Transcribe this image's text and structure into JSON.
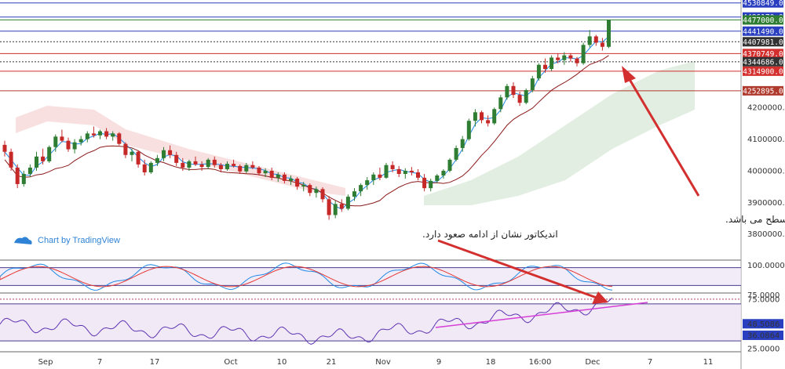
{
  "chart_data": {
    "type": "candlestick",
    "brand": "Chart by TradingView",
    "price_axis": {
      "ticks": [
        "4200000.0",
        "4100000.0",
        "4000000.0",
        "3900000.0",
        "3800000.0"
      ],
      "tick_values": [
        4200000,
        4100000,
        4000000,
        3900000,
        3800000
      ],
      "range": [
        3720000,
        4540000
      ]
    },
    "level_lines": [
      {
        "label": "4530849.0",
        "value": 4530849,
        "color": "#2a3fbf"
      },
      {
        "label": "4486170.0",
        "value": 4486170,
        "color": "#2a3fbf"
      },
      {
        "label": "4477000.0",
        "value": 4477000,
        "color": "#2e7d32"
      },
      {
        "label": "4441490.0",
        "value": 4441490,
        "color": "#2a3fbf"
      },
      {
        "label": "4407981.0",
        "value": 4407981,
        "color": "#333333"
      },
      {
        "label": "4370749.0",
        "value": 4370749,
        "color": "#d32f2f"
      },
      {
        "label": "4344686.0",
        "value": 4344686,
        "color": "#333333"
      },
      {
        "label": "4314900.0",
        "value": 4314900,
        "color": "#d32f2f"
      },
      {
        "label": "4252895.0",
        "value": 4252895,
        "color": "#b03a2e"
      }
    ],
    "x_axis": [
      "Sep",
      "7",
      "17",
      "Oct",
      "10",
      "21",
      "Nov",
      "9",
      "18",
      "16:00",
      "Dec",
      "7",
      "11"
    ],
    "stoch_panel": {
      "ticks": [
        "100.0000",
        "75.0000"
      ],
      "range": [
        0,
        100
      ],
      "lines": [
        80,
        20
      ]
    },
    "rsi_panel": {
      "ticks": [
        "75.0000",
        "48.5086",
        "36.0864",
        "25.0000"
      ],
      "range": [
        20,
        80
      ],
      "band": [
        30,
        70
      ]
    },
    "price_series": [
      {
        "t": 0,
        "o": 4082000,
        "h": 4095000,
        "l": 4045000,
        "c": 4060000
      },
      {
        "t": 0.5,
        "o": 4060000,
        "h": 4070000,
        "l": 4000000,
        "c": 4010000
      },
      {
        "t": 1.0,
        "o": 4010000,
        "h": 4020000,
        "l": 3945000,
        "c": 3958000
      },
      {
        "t": 1.5,
        "o": 3958000,
        "h": 4000000,
        "l": 3950000,
        "c": 3990000
      },
      {
        "t": 2.0,
        "o": 3990000,
        "h": 4020000,
        "l": 3980000,
        "c": 4010000
      },
      {
        "t": 2.5,
        "o": 4010000,
        "h": 4060000,
        "l": 4000000,
        "c": 4045000
      },
      {
        "t": 3.0,
        "o": 4045000,
        "h": 4070000,
        "l": 4020000,
        "c": 4030000
      },
      {
        "t": 3.5,
        "o": 4030000,
        "h": 4080000,
        "l": 4025000,
        "c": 4075000
      },
      {
        "t": 4.0,
        "o": 4075000,
        "h": 4115000,
        "l": 4060000,
        "c": 4108000
      },
      {
        "t": 4.5,
        "o": 4108000,
        "h": 4130000,
        "l": 4090000,
        "c": 4095000
      },
      {
        "t": 5.0,
        "o": 4095000,
        "h": 4105000,
        "l": 4060000,
        "c": 4068000
      },
      {
        "t": 5.5,
        "o": 4068000,
        "h": 4100000,
        "l": 4055000,
        "c": 4090000
      },
      {
        "t": 6.0,
        "o": 4090000,
        "h": 4110000,
        "l": 4080000,
        "c": 4100000
      },
      {
        "t": 6.5,
        "o": 4100000,
        "h": 4125000,
        "l": 4090000,
        "c": 4118000
      },
      {
        "t": 7.0,
        "o": 4118000,
        "h": 4140000,
        "l": 4105000,
        "c": 4112000
      },
      {
        "t": 7.5,
        "o": 4112000,
        "h": 4130000,
        "l": 4100000,
        "c": 4125000
      },
      {
        "t": 8.0,
        "o": 4125000,
        "h": 4135000,
        "l": 4100000,
        "c": 4108000
      },
      {
        "t": 8.5,
        "o": 4108000,
        "h": 4125000,
        "l": 4095000,
        "c": 4118000
      },
      {
        "t": 9.0,
        "o": 4118000,
        "h": 4122000,
        "l": 4080000,
        "c": 4085000
      },
      {
        "t": 9.5,
        "o": 4085000,
        "h": 4090000,
        "l": 4040000,
        "c": 4050000
      },
      {
        "t": 10.0,
        "o": 4050000,
        "h": 4070000,
        "l": 4030000,
        "c": 4060000
      },
      {
        "t": 10.5,
        "o": 4060000,
        "h": 4065000,
        "l": 4010000,
        "c": 4020000
      },
      {
        "t": 11.0,
        "o": 4020000,
        "h": 4035000,
        "l": 3985000,
        "c": 3995000
      },
      {
        "t": 11.5,
        "o": 3995000,
        "h": 4030000,
        "l": 3990000,
        "c": 4025000
      },
      {
        "t": 12.0,
        "o": 4025000,
        "h": 4050000,
        "l": 4015000,
        "c": 4040000
      },
      {
        "t": 12.5,
        "o": 4040000,
        "h": 4075000,
        "l": 4030000,
        "c": 4065000
      },
      {
        "t": 13.0,
        "o": 4065000,
        "h": 4080000,
        "l": 4040000,
        "c": 4050000
      },
      {
        "t": 13.5,
        "o": 4050000,
        "h": 4060000,
        "l": 4015000,
        "c": 4025000
      },
      {
        "t": 14.0,
        "o": 4025000,
        "h": 4040000,
        "l": 4000000,
        "c": 4010000
      },
      {
        "t": 14.5,
        "o": 4010000,
        "h": 4035000,
        "l": 4000000,
        "c": 4030000
      },
      {
        "t": 15.0,
        "o": 4030000,
        "h": 4045000,
        "l": 4015000,
        "c": 4020000
      },
      {
        "t": 15.5,
        "o": 4020000,
        "h": 4030000,
        "l": 4000000,
        "c": 4012000
      },
      {
        "t": 16.0,
        "o": 4012000,
        "h": 4040000,
        "l": 4005000,
        "c": 4035000
      },
      {
        "t": 16.5,
        "o": 4035000,
        "h": 4045000,
        "l": 4010000,
        "c": 4018000
      },
      {
        "t": 17.0,
        "o": 4018000,
        "h": 4025000,
        "l": 3995000,
        "c": 4005000
      },
      {
        "t": 17.5,
        "o": 4005000,
        "h": 4030000,
        "l": 4000000,
        "c": 4022000
      },
      {
        "t": 18.0,
        "o": 4022000,
        "h": 4035000,
        "l": 4010000,
        "c": 4015000
      },
      {
        "t": 18.5,
        "o": 4015000,
        "h": 4020000,
        "l": 3990000,
        "c": 3998000
      },
      {
        "t": 19.0,
        "o": 3998000,
        "h": 4025000,
        "l": 3992000,
        "c": 4018000
      },
      {
        "t": 19.5,
        "o": 4018000,
        "h": 4030000,
        "l": 4005000,
        "c": 4010000
      },
      {
        "t": 20.0,
        "o": 4010000,
        "h": 4015000,
        "l": 3985000,
        "c": 3992000
      },
      {
        "t": 20.5,
        "o": 3992000,
        "h": 4008000,
        "l": 3980000,
        "c": 4000000
      },
      {
        "t": 21.0,
        "o": 4000000,
        "h": 4010000,
        "l": 3970000,
        "c": 3978000
      },
      {
        "t": 21.5,
        "o": 3978000,
        "h": 3995000,
        "l": 3965000,
        "c": 3988000
      },
      {
        "t": 22.0,
        "o": 3988000,
        "h": 3995000,
        "l": 3960000,
        "c": 3968000
      },
      {
        "t": 22.5,
        "o": 3968000,
        "h": 3985000,
        "l": 3955000,
        "c": 3975000
      },
      {
        "t": 23.0,
        "o": 3975000,
        "h": 3980000,
        "l": 3940000,
        "c": 3950000
      },
      {
        "t": 23.5,
        "o": 3950000,
        "h": 3965000,
        "l": 3935000,
        "c": 3955000
      },
      {
        "t": 24.0,
        "o": 3955000,
        "h": 3960000,
        "l": 3920000,
        "c": 3930000
      },
      {
        "t": 24.5,
        "o": 3930000,
        "h": 3950000,
        "l": 3915000,
        "c": 3942000
      },
      {
        "t": 25.0,
        "o": 3942000,
        "h": 3948000,
        "l": 3900000,
        "c": 3910000
      },
      {
        "t": 25.5,
        "o": 3910000,
        "h": 3920000,
        "l": 3845000,
        "c": 3860000
      },
      {
        "t": 26.0,
        "o": 3860000,
        "h": 3905000,
        "l": 3850000,
        "c": 3895000
      },
      {
        "t": 26.5,
        "o": 3895000,
        "h": 3910000,
        "l": 3870000,
        "c": 3880000
      },
      {
        "t": 27.0,
        "o": 3880000,
        "h": 3925000,
        "l": 3875000,
        "c": 3918000
      },
      {
        "t": 27.5,
        "o": 3918000,
        "h": 3945000,
        "l": 3905000,
        "c": 3935000
      },
      {
        "t": 28.0,
        "o": 3935000,
        "h": 3960000,
        "l": 3920000,
        "c": 3955000
      },
      {
        "t": 28.5,
        "o": 3955000,
        "h": 3980000,
        "l": 3940000,
        "c": 3970000
      },
      {
        "t": 29.0,
        "o": 3970000,
        "h": 3995000,
        "l": 3955000,
        "c": 3988000
      },
      {
        "t": 29.5,
        "o": 3988000,
        "h": 4010000,
        "l": 3970000,
        "c": 3978000
      },
      {
        "t": 30.0,
        "o": 3978000,
        "h": 4025000,
        "l": 3975000,
        "c": 4018000
      },
      {
        "t": 30.5,
        "o": 4018000,
        "h": 4030000,
        "l": 3995000,
        "c": 4005000
      },
      {
        "t": 31.0,
        "o": 4005000,
        "h": 4015000,
        "l": 3980000,
        "c": 3990000
      },
      {
        "t": 31.5,
        "o": 3990000,
        "h": 4008000,
        "l": 3975000,
        "c": 4000000
      },
      {
        "t": 32.0,
        "o": 4000000,
        "h": 4012000,
        "l": 3985000,
        "c": 3995000
      },
      {
        "t": 32.5,
        "o": 3995000,
        "h": 4005000,
        "l": 3970000,
        "c": 3978000
      },
      {
        "t": 33.0,
        "o": 3978000,
        "h": 3990000,
        "l": 3935000,
        "c": 3945000
      },
      {
        "t": 33.5,
        "o": 3945000,
        "h": 3975000,
        "l": 3935000,
        "c": 3968000
      },
      {
        "t": 34.0,
        "o": 3968000,
        "h": 3990000,
        "l": 3960000,
        "c": 3985000
      },
      {
        "t": 34.5,
        "o": 3985000,
        "h": 4005000,
        "l": 3975000,
        "c": 4000000
      },
      {
        "t": 35.0,
        "o": 4000000,
        "h": 4040000,
        "l": 3995000,
        "c": 4035000
      },
      {
        "t": 35.5,
        "o": 4035000,
        "h": 4080000,
        "l": 4030000,
        "c": 4072000
      },
      {
        "t": 36.0,
        "o": 4072000,
        "h": 4110000,
        "l": 4060000,
        "c": 4100000
      },
      {
        "t": 36.5,
        "o": 4100000,
        "h": 4165000,
        "l": 4095000,
        "c": 4158000
      },
      {
        "t": 37.0,
        "o": 4158000,
        "h": 4195000,
        "l": 4140000,
        "c": 4185000
      },
      {
        "t": 37.5,
        "o": 4185000,
        "h": 4190000,
        "l": 4150000,
        "c": 4160000
      },
      {
        "t": 38.0,
        "o": 4160000,
        "h": 4175000,
        "l": 4140000,
        "c": 4150000
      },
      {
        "t": 38.5,
        "o": 4150000,
        "h": 4200000,
        "l": 4145000,
        "c": 4195000
      },
      {
        "t": 39.0,
        "o": 4195000,
        "h": 4240000,
        "l": 4185000,
        "c": 4232000
      },
      {
        "t": 39.5,
        "o": 4232000,
        "h": 4275000,
        "l": 4225000,
        "c": 4268000
      },
      {
        "t": 40.0,
        "o": 4268000,
        "h": 4280000,
        "l": 4230000,
        "c": 4240000
      },
      {
        "t": 40.5,
        "o": 4240000,
        "h": 4250000,
        "l": 4205000,
        "c": 4215000
      },
      {
        "t": 41.0,
        "o": 4215000,
        "h": 4260000,
        "l": 4210000,
        "c": 4255000
      },
      {
        "t": 41.5,
        "o": 4255000,
        "h": 4300000,
        "l": 4248000,
        "c": 4292000
      },
      {
        "t": 42.0,
        "o": 4292000,
        "h": 4340000,
        "l": 4285000,
        "c": 4335000
      },
      {
        "t": 42.5,
        "o": 4335000,
        "h": 4355000,
        "l": 4310000,
        "c": 4322000
      },
      {
        "t": 43.0,
        "o": 4322000,
        "h": 4365000,
        "l": 4315000,
        "c": 4358000
      },
      {
        "t": 43.5,
        "o": 4358000,
        "h": 4370000,
        "l": 4340000,
        "c": 4350000
      },
      {
        "t": 44.0,
        "o": 4350000,
        "h": 4375000,
        "l": 4335000,
        "c": 4365000
      },
      {
        "t": 44.5,
        "o": 4365000,
        "h": 4372000,
        "l": 4345000,
        "c": 4355000
      },
      {
        "t": 45.0,
        "o": 4355000,
        "h": 4360000,
        "l": 4330000,
        "c": 4340000
      },
      {
        "t": 45.5,
        "o": 4340000,
        "h": 4405000,
        "l": 4335000,
        "c": 4398000
      },
      {
        "t": 46.0,
        "o": 4398000,
        "h": 4445000,
        "l": 4390000,
        "c": 4425000
      },
      {
        "t": 46.5,
        "o": 4425000,
        "h": 4430000,
        "l": 4395000,
        "c": 4405000
      },
      {
        "t": 47.0,
        "o": 4405000,
        "h": 4420000,
        "l": 4380000,
        "c": 4392000
      },
      {
        "t": 47.5,
        "o": 4392000,
        "h": 4477000,
        "l": 4388000,
        "c": 4477000
      }
    ],
    "annotations": [
      {
        "text": "شرط ادامه صعود پایداری قیمت بالاتر از سطح می باشد."
      },
      {
        "text": "اندیکاتور نشان از ادامه صعود دارد."
      }
    ]
  }
}
